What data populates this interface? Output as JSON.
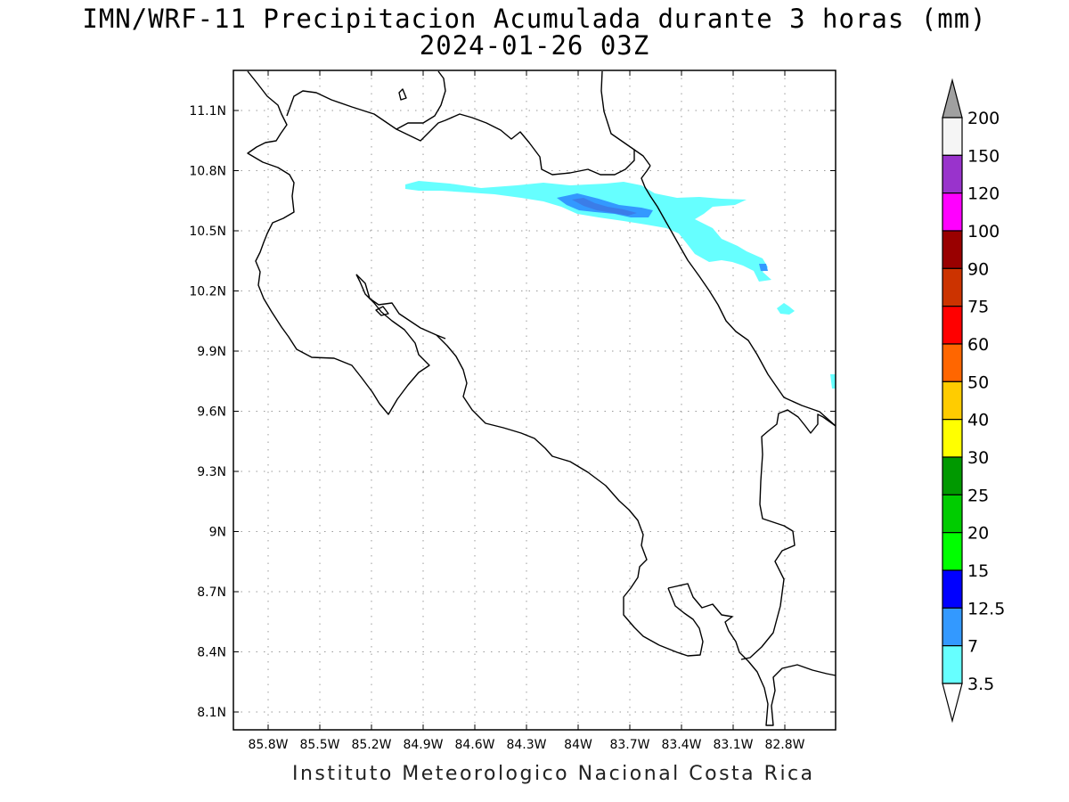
{
  "title": {
    "line1": "IMN/WRF-11 Precipitacion Acumulada durante 3 horas (mm)",
    "line2": "2024-01-26 03Z"
  },
  "footer": "Instituto Meteorologico Nacional Costa Rica",
  "map": {
    "lon_labels": [
      "85.8W",
      "85.5W",
      "85.2W",
      "84.9W",
      "84.6W",
      "84.3W",
      "84W",
      "83.7W",
      "83.4W",
      "83.1W",
      "82.8W"
    ],
    "lat_labels": [
      "11.1N",
      "10.8N",
      "10.5N",
      "10.2N",
      "9.9N",
      "9.6N",
      "9.3N",
      "9N",
      "8.7N",
      "8.4N",
      "8.1N"
    ],
    "grid": true,
    "precip_color": "#66ffff",
    "precip_heavy_color": "#3399ff",
    "precip_peak_color": "#3b7de8"
  },
  "colorbar": {
    "labels": [
      "200",
      "150",
      "120",
      "100",
      "90",
      "75",
      "60",
      "50",
      "40",
      "30",
      "25",
      "20",
      "15",
      "12.5",
      "7",
      "3.5"
    ],
    "colors": [
      "#f5f5f5",
      "#9933cc",
      "#ff00ff",
      "#990000",
      "#cc3300",
      "#ff0000",
      "#ff6600",
      "#ffcc00",
      "#ffff00",
      "#009900",
      "#00cc00",
      "#00ff00",
      "#0000ff",
      "#3399ff",
      "#66ffff"
    ],
    "over_color": "#a0a0a0",
    "under_color": "#ffffff"
  }
}
